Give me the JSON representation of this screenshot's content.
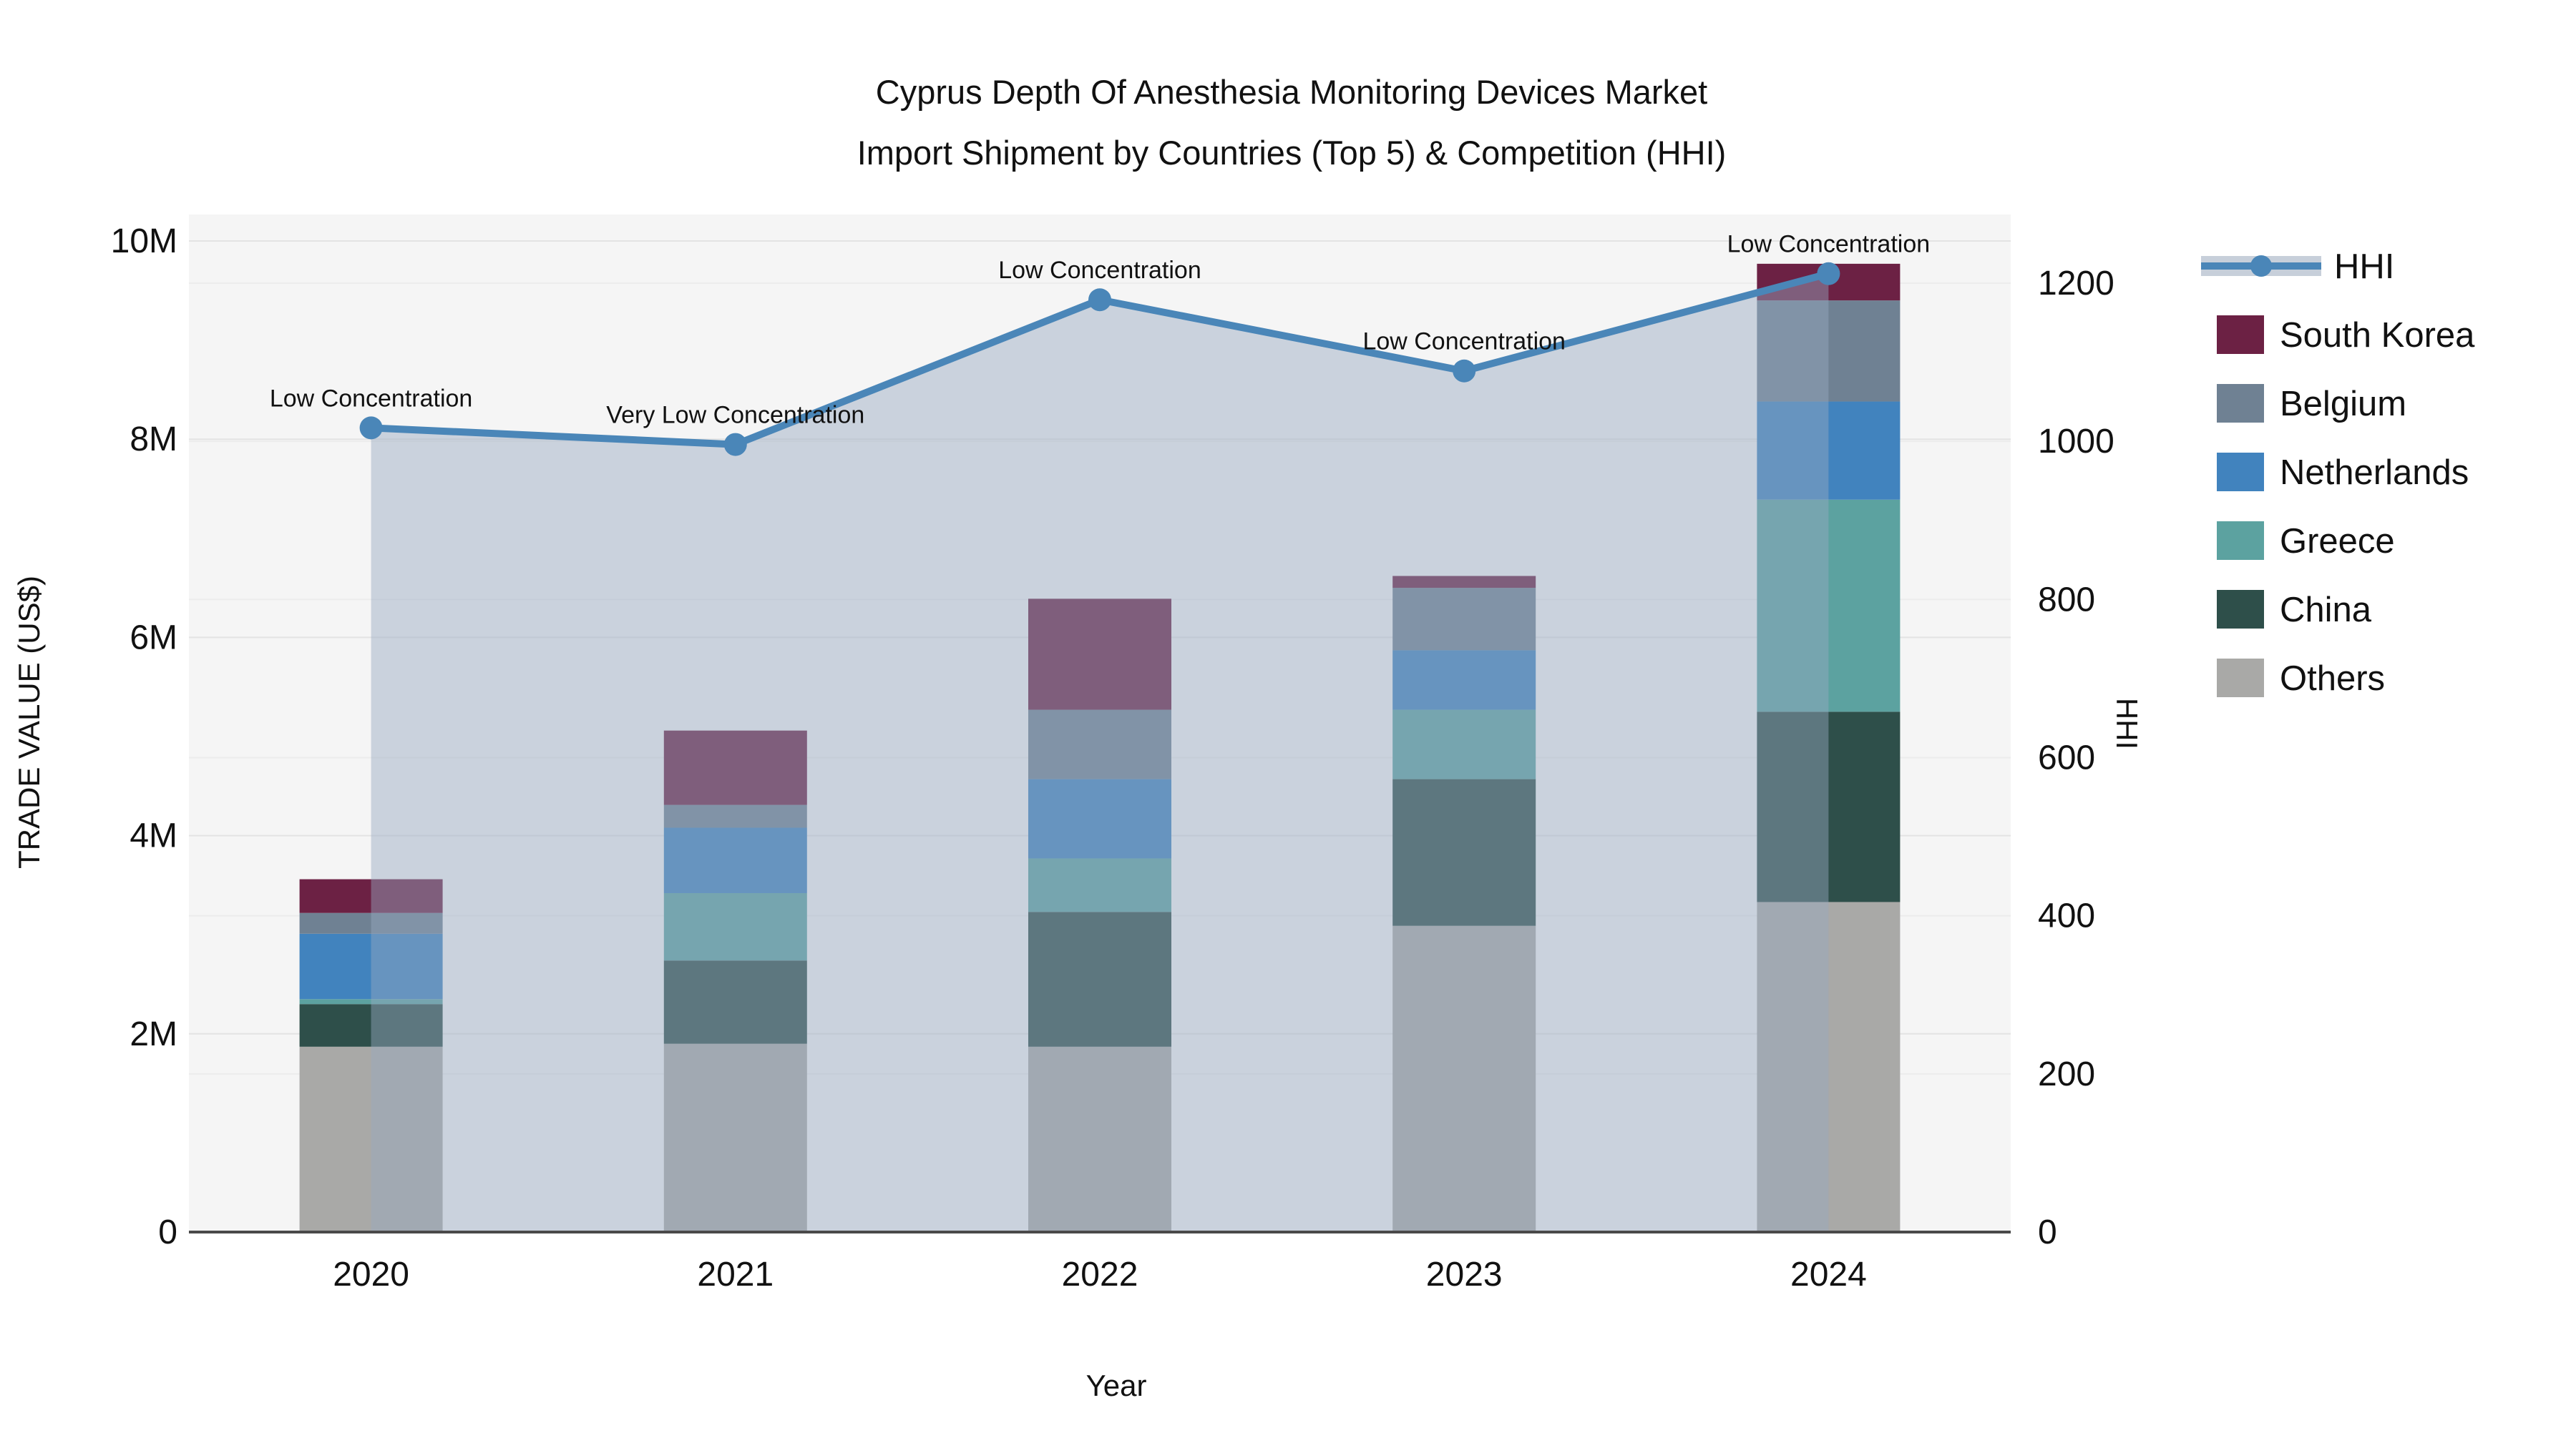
{
  "title": {
    "line1": "Cyprus Depth Of Anesthesia Monitoring Devices Market",
    "line2": "Import Shipment by Countries (Top 5) & Competition (HHI)"
  },
  "axes": {
    "x_title": "Year",
    "y_left_title": "TRADE VALUE (US$)",
    "y_right_title": "HHI",
    "y_left_ticks": [
      "0",
      "2M",
      "4M",
      "6M",
      "8M",
      "10M"
    ],
    "y_left_tick_values": [
      0,
      2000000,
      4000000,
      6000000,
      8000000,
      10000000
    ],
    "y_left_range": [
      0,
      10000000
    ],
    "y_right_ticks": [
      "0",
      "200",
      "400",
      "600",
      "800",
      "1000",
      "1200"
    ],
    "y_right_tick_values": [
      0,
      200,
      400,
      600,
      800,
      1000,
      1200
    ],
    "y_right_range": [
      0,
      1200
    ]
  },
  "legend": {
    "items": [
      {
        "label": "HHI",
        "type": "line",
        "color": "#4a86b8"
      },
      {
        "label": "South Korea",
        "type": "box",
        "color": "#6c2144"
      },
      {
        "label": "Belgium",
        "type": "box",
        "color": "#6f8193"
      },
      {
        "label": "Netherlands",
        "type": "box",
        "color": "#4183be"
      },
      {
        "label": "Greece",
        "type": "box",
        "color": "#5ca2a0"
      },
      {
        "label": "China",
        "type": "box",
        "color": "#2e4f4a"
      },
      {
        "label": "Others",
        "type": "box",
        "color": "#a9a9a7"
      }
    ]
  },
  "chart_data": {
    "type": "bar",
    "subtype": "stacked-bar-with-line",
    "categories": [
      "2020",
      "2021",
      "2022",
      "2023",
      "2024"
    ],
    "value_unit": "US$ millions",
    "series": [
      {
        "name": "South Korea",
        "color": "#6c2144",
        "values": [
          0.34,
          0.75,
          1.12,
          0.12,
          0.37
        ]
      },
      {
        "name": "Belgium",
        "color": "#6f8193",
        "values": [
          0.21,
          0.23,
          0.7,
          0.63,
          1.02
        ]
      },
      {
        "name": "Netherlands",
        "color": "#4183be",
        "values": [
          0.66,
          0.66,
          0.8,
          0.6,
          0.99
        ]
      },
      {
        "name": "Greece",
        "color": "#5ca2a0",
        "values": [
          0.05,
          0.68,
          0.54,
          0.7,
          2.14
        ]
      },
      {
        "name": "China",
        "color": "#2e4f4a",
        "values": [
          0.43,
          0.84,
          1.36,
          1.48,
          1.92
        ]
      },
      {
        "name": "Others",
        "color": "#a9a9a7",
        "values": [
          1.87,
          1.9,
          1.87,
          3.09,
          3.33
        ]
      }
    ],
    "bar_totals": [
      3.56,
      5.06,
      6.39,
      6.62,
      9.77
    ],
    "line_series": {
      "name": "HHI",
      "color": "#4a86b8",
      "axis": "right",
      "values": [
        1017,
        996,
        1179,
        1089,
        1212
      ],
      "area_fill": true
    },
    "annotations": [
      {
        "category": "2020",
        "text": "Low Concentration"
      },
      {
        "category": "2021",
        "text": "Very Low Concentration"
      },
      {
        "category": "2022",
        "text": "Low Concentration"
      },
      {
        "category": "2023",
        "text": "Low Concentration"
      },
      {
        "category": "2024",
        "text": "Low Concentration"
      }
    ],
    "xlabel": "Year",
    "ylabel": "TRADE VALUE (US$)",
    "ylabel_right": "HHI",
    "ylim_left": [
      0,
      10000000
    ],
    "ylim_right": [
      0,
      1200
    ],
    "grid": true,
    "legend_position": "right"
  },
  "colors": {
    "plot_background": "#f5f5f5",
    "page_background": "#ffffff",
    "grid_major": "#e3e3e3",
    "grid_minor": "#ececec",
    "axis_line": "#4a4a4a",
    "hhi_line": "#4a86b8",
    "hhi_area": "#96a8c0",
    "hhi_area_opacity": 0.45,
    "legend_band": "#c7cfda",
    "text": "#111111"
  }
}
